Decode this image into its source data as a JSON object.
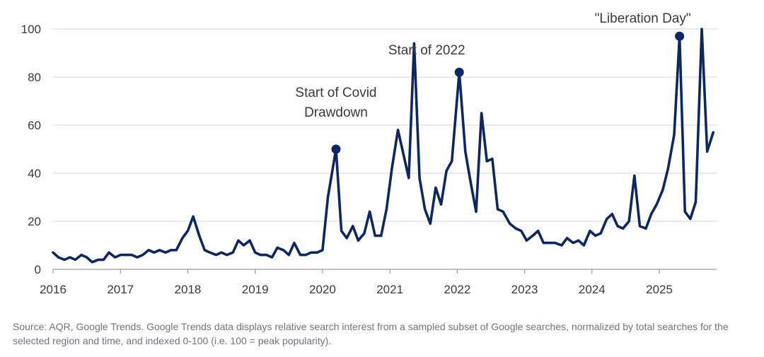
{
  "chart_data": {
    "type": "line",
    "title": "",
    "xlabel": "",
    "ylabel": "",
    "ylim": [
      0,
      100
    ],
    "yticks": [
      0,
      20,
      40,
      60,
      80,
      100
    ],
    "xlim": [
      2016,
      2025.85
    ],
    "xticks": [
      "2016",
      "2017",
      "2018",
      "2019",
      "2020",
      "2021",
      "2022",
      "2023",
      "2024",
      "2025"
    ],
    "grid": "horizontal",
    "series": [
      {
        "color": "#0d2666",
        "points": [
          [
            2016.0,
            7
          ],
          [
            2016.08,
            5
          ],
          [
            2016.17,
            4
          ],
          [
            2016.25,
            5
          ],
          [
            2016.33,
            4
          ],
          [
            2016.42,
            6
          ],
          [
            2016.5,
            5
          ],
          [
            2016.58,
            3
          ],
          [
            2016.67,
            4
          ],
          [
            2016.75,
            4
          ],
          [
            2016.83,
            7
          ],
          [
            2016.92,
            5
          ],
          [
            2017.0,
            6
          ],
          [
            2017.08,
            6
          ],
          [
            2017.17,
            6
          ],
          [
            2017.25,
            5
          ],
          [
            2017.33,
            6
          ],
          [
            2017.42,
            8
          ],
          [
            2017.5,
            7
          ],
          [
            2017.58,
            8
          ],
          [
            2017.67,
            7
          ],
          [
            2017.75,
            8
          ],
          [
            2017.83,
            8
          ],
          [
            2017.92,
            13
          ],
          [
            2018.0,
            16
          ],
          [
            2018.08,
            22
          ],
          [
            2018.17,
            14
          ],
          [
            2018.25,
            8
          ],
          [
            2018.33,
            7
          ],
          [
            2018.42,
            6
          ],
          [
            2018.5,
            7
          ],
          [
            2018.58,
            6
          ],
          [
            2018.67,
            7
          ],
          [
            2018.75,
            12
          ],
          [
            2018.83,
            10
          ],
          [
            2018.92,
            12
          ],
          [
            2019.0,
            7
          ],
          [
            2019.08,
            6
          ],
          [
            2019.17,
            6
          ],
          [
            2019.25,
            5
          ],
          [
            2019.33,
            9
          ],
          [
            2019.42,
            8
          ],
          [
            2019.5,
            6
          ],
          [
            2019.58,
            11
          ],
          [
            2019.67,
            6
          ],
          [
            2019.75,
            6
          ],
          [
            2019.83,
            7
          ],
          [
            2019.92,
            7
          ],
          [
            2020.0,
            8
          ],
          [
            2020.08,
            30
          ],
          [
            2020.2,
            50
          ],
          [
            2020.28,
            16
          ],
          [
            2020.36,
            13
          ],
          [
            2020.45,
            18
          ],
          [
            2020.53,
            12
          ],
          [
            2020.62,
            15
          ],
          [
            2020.7,
            24
          ],
          [
            2020.78,
            14
          ],
          [
            2020.87,
            14
          ],
          [
            2020.95,
            25
          ],
          [
            2021.03,
            42
          ],
          [
            2021.12,
            58
          ],
          [
            2021.2,
            48
          ],
          [
            2021.28,
            38
          ],
          [
            2021.36,
            94
          ],
          [
            2021.44,
            38
          ],
          [
            2021.52,
            25
          ],
          [
            2021.6,
            19
          ],
          [
            2021.68,
            34
          ],
          [
            2021.76,
            27
          ],
          [
            2021.84,
            41
          ],
          [
            2021.92,
            45
          ],
          [
            2022.03,
            82
          ],
          [
            2022.12,
            49
          ],
          [
            2022.2,
            36
          ],
          [
            2022.28,
            24
          ],
          [
            2022.36,
            65
          ],
          [
            2022.44,
            45
          ],
          [
            2022.52,
            46
          ],
          [
            2022.6,
            25
          ],
          [
            2022.68,
            24
          ],
          [
            2022.78,
            19
          ],
          [
            2022.87,
            17
          ],
          [
            2022.95,
            16
          ],
          [
            2023.03,
            12
          ],
          [
            2023.12,
            14
          ],
          [
            2023.2,
            16
          ],
          [
            2023.28,
            11
          ],
          [
            2023.37,
            11
          ],
          [
            2023.45,
            11
          ],
          [
            2023.55,
            10
          ],
          [
            2023.63,
            13
          ],
          [
            2023.72,
            11
          ],
          [
            2023.8,
            12
          ],
          [
            2023.88,
            10
          ],
          [
            2023.97,
            16
          ],
          [
            2024.05,
            14
          ],
          [
            2024.13,
            15
          ],
          [
            2024.22,
            21
          ],
          [
            2024.3,
            23
          ],
          [
            2024.38,
            18
          ],
          [
            2024.46,
            17
          ],
          [
            2024.55,
            20
          ],
          [
            2024.63,
            39
          ],
          [
            2024.71,
            18
          ],
          [
            2024.8,
            17
          ],
          [
            2024.88,
            23
          ],
          [
            2024.96,
            27
          ],
          [
            2025.05,
            33
          ],
          [
            2025.13,
            42
          ],
          [
            2025.22,
            56
          ],
          [
            2025.3,
            97
          ],
          [
            2025.38,
            24
          ],
          [
            2025.46,
            21
          ],
          [
            2025.54,
            28
          ],
          [
            2025.63,
            100
          ],
          [
            2025.71,
            49
          ],
          [
            2025.8,
            57
          ]
        ]
      }
    ],
    "annotations": [
      {
        "lines": [
          "Start of Covid",
          "Drawdown"
        ],
        "x": 2020.2,
        "y": 50
      },
      {
        "lines": [
          "Start of 2022"
        ],
        "x": 2022.03,
        "y": 82
      },
      {
        "lines": [
          "\"Liberation Day\""
        ],
        "x": 2025.3,
        "y": 97
      }
    ]
  },
  "source_note": "Source: AQR, Google Trends. Google Trends data displays relative search interest from a sampled subset of Google searches, normalized by total searches for the selected region and time, and indexed 0-100 (i.e. 100 = peak popularity)."
}
